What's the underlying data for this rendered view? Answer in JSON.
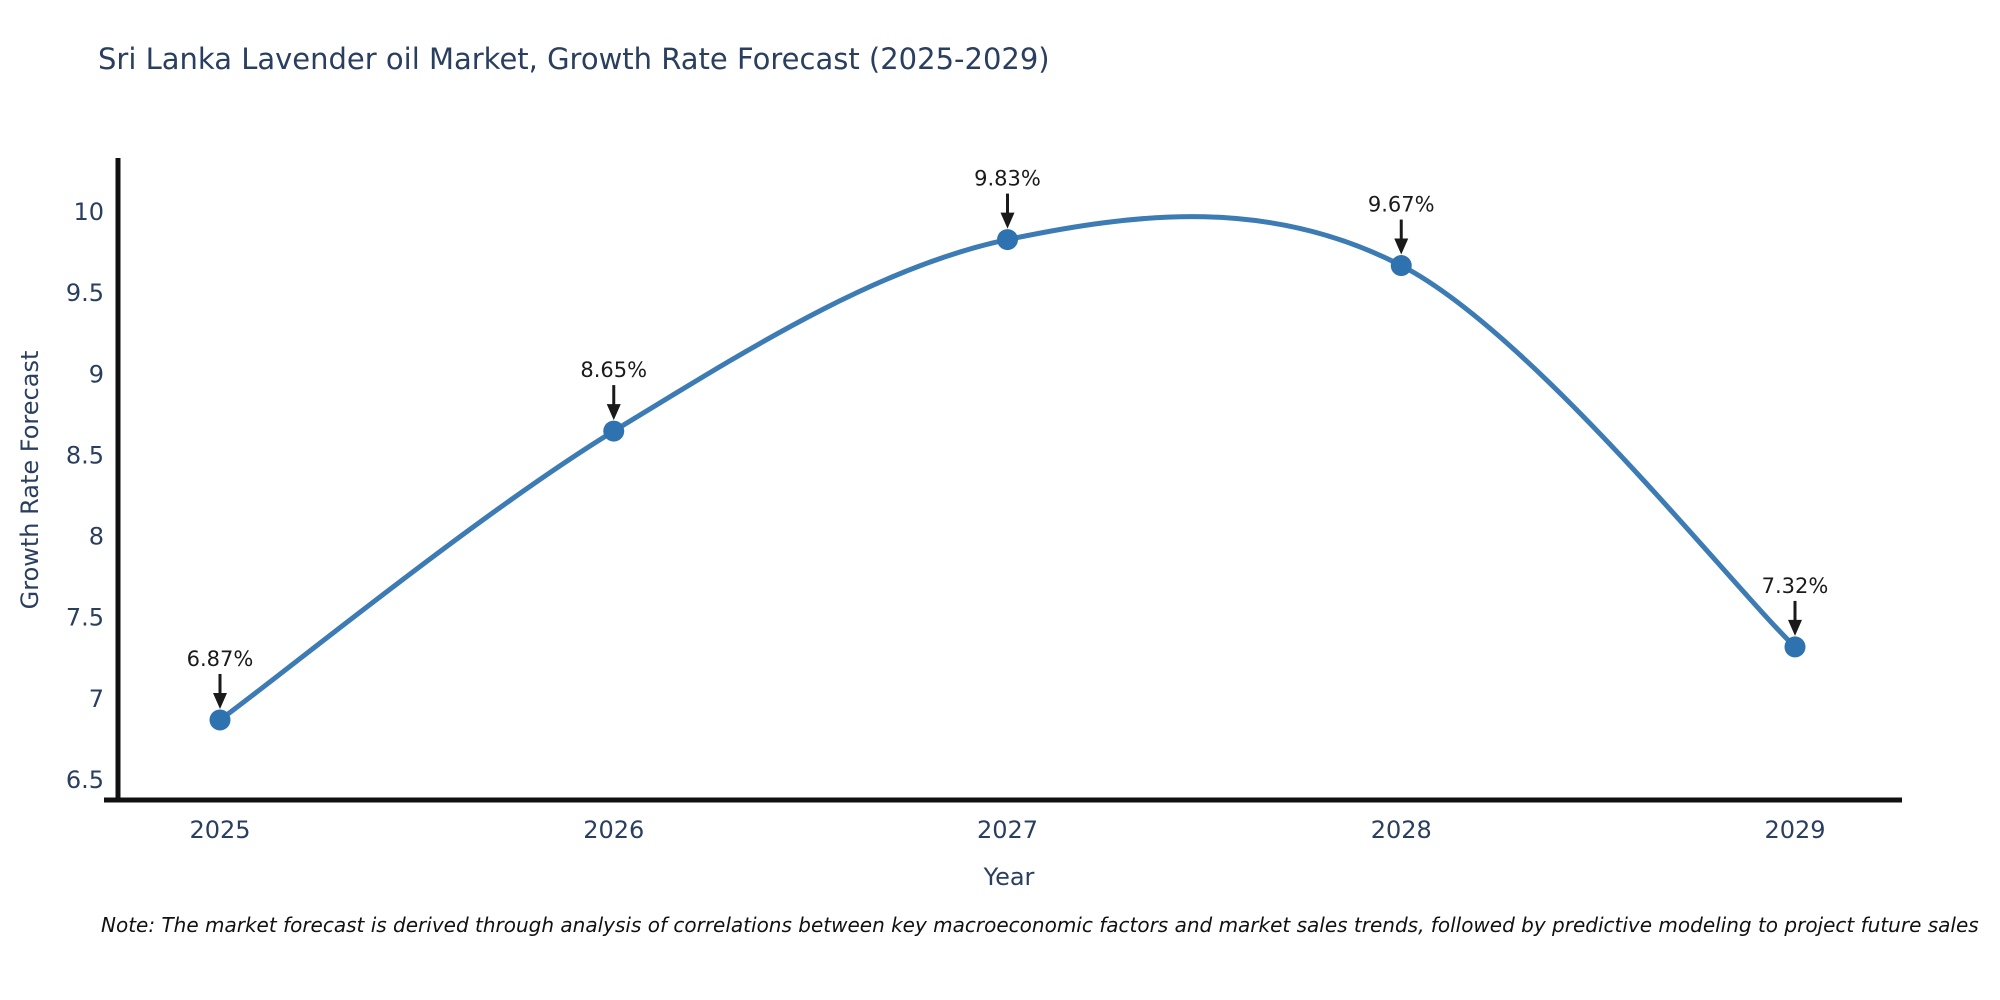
{
  "title": "Sri Lanka Lavender oil Market, Growth Rate Forecast (2025-2029)",
  "note": "Note: The market forecast is derived through analysis of correlations between key macroeconomic factors and market sales trends, followed by predictive modeling to project future sales",
  "chart_data": {
    "type": "line",
    "title": "Sri Lanka Lavender oil Market, Growth Rate Forecast (2025-2029)",
    "xlabel": "Year",
    "ylabel": "Growth Rate Forecast",
    "categories": [
      "2025",
      "2026",
      "2027",
      "2028",
      "2029"
    ],
    "values": [
      6.87,
      8.65,
      9.83,
      9.67,
      7.32
    ],
    "labels": [
      "6.87%",
      "8.65%",
      "9.83%",
      "9.67%",
      "7.32%"
    ],
    "yticklabels": [
      "10",
      "9.5",
      "9",
      "8.5",
      "8",
      "7.5",
      "7",
      "6.5"
    ],
    "ylim": [
      6.38,
      10.32
    ],
    "line_shape": "spline",
    "grid": "off",
    "legend": "none",
    "marker": "circle",
    "annotation_style": "value label with down arrow above each point",
    "colors": {
      "line": "#3c7bb3",
      "marker": "#2e72b0",
      "text": "#2a3f5f",
      "axis": "#111111",
      "annotation": "#1a1a1a",
      "background": "#ffffff"
    }
  }
}
